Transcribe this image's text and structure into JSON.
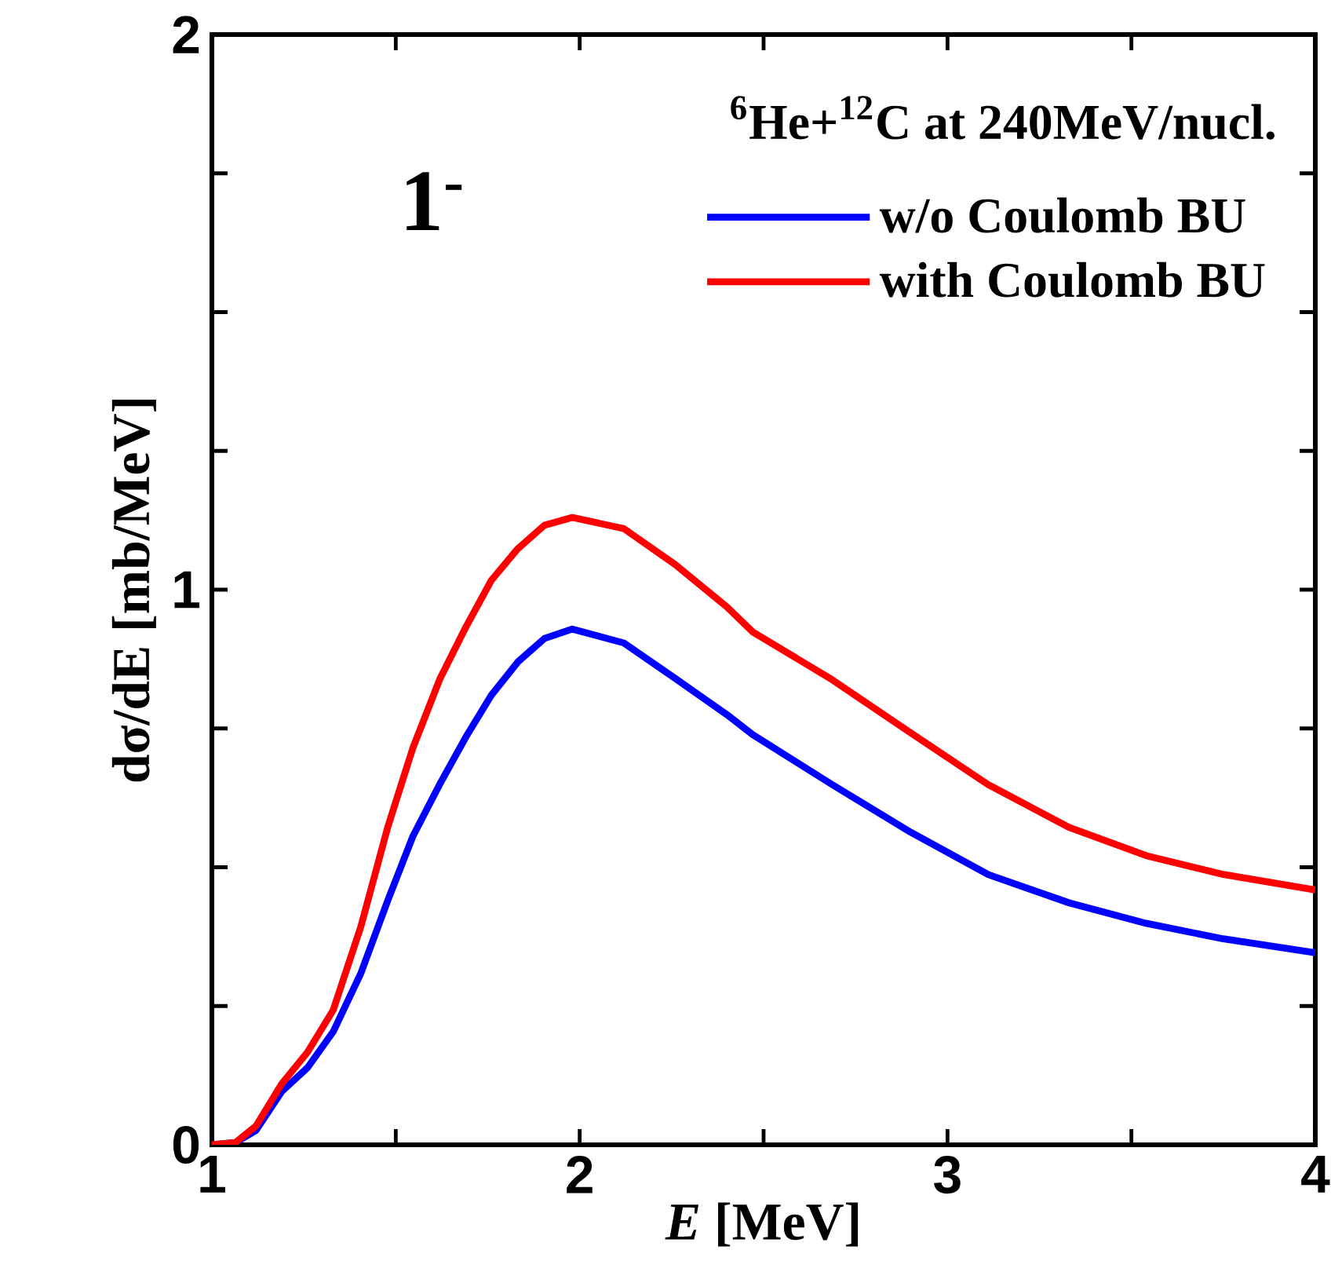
{
  "chart_data": {
    "type": "line",
    "xlabel": "*E* [MeV]",
    "ylabel": "dσ/dE [mb/MeV]",
    "annotations": [
      "1$^{-}$",
      "$^{6}$He+$^{12}$C at 240MeV/nucl."
    ],
    "x": [
      1.0,
      1.064,
      1.12,
      1.19,
      1.26,
      1.33,
      1.405,
      1.478,
      1.546,
      1.619,
      1.69,
      1.76,
      1.832,
      1.904,
      1.98,
      2.12,
      2.26,
      2.4,
      2.47,
      2.686,
      2.9,
      3.11,
      3.33,
      3.54,
      3.75,
      4.0
    ],
    "series": [
      {
        "name": "w/o Coulomb BU",
        "color": "#0000ff",
        "values": [
          0.0,
          0.004,
          0.026,
          0.096,
          0.139,
          0.204,
          0.309,
          0.44,
          0.555,
          0.649,
          0.734,
          0.81,
          0.87,
          0.912,
          0.929,
          0.904,
          0.84,
          0.775,
          0.739,
          0.649,
          0.563,
          0.487,
          0.436,
          0.399,
          0.371,
          0.346
        ]
      },
      {
        "name": "with Coulomb BU",
        "color": "#ff0000",
        "values": [
          0.0,
          0.004,
          0.034,
          0.11,
          0.167,
          0.243,
          0.393,
          0.572,
          0.714,
          0.838,
          0.932,
          1.017,
          1.074,
          1.116,
          1.13,
          1.11,
          1.045,
          0.969,
          0.924,
          0.838,
          0.742,
          0.649,
          0.572,
          0.521,
          0.487,
          0.459
        ]
      }
    ],
    "xlim": [
      1,
      4
    ],
    "ylim": [
      0,
      2
    ],
    "xticks": [
      1,
      {
        "value": 1.5,
        "label": null
      },
      2,
      {
        "value": 2.5,
        "label": null
      },
      3,
      {
        "value": 3.5,
        "label": null
      },
      4
    ],
    "yticks": [
      0,
      {
        "value": 0.25,
        "label": null
      },
      {
        "value": 0.5,
        "label": null
      },
      {
        "value": 0.75,
        "label": null
      },
      1,
      {
        "value": 1.25,
        "label": null
      },
      {
        "value": 1.5,
        "label": null
      },
      {
        "value": 1.75,
        "label": null
      },
      2
    ],
    "legend": "top right",
    "marker": "none",
    "line_style": "solid"
  }
}
